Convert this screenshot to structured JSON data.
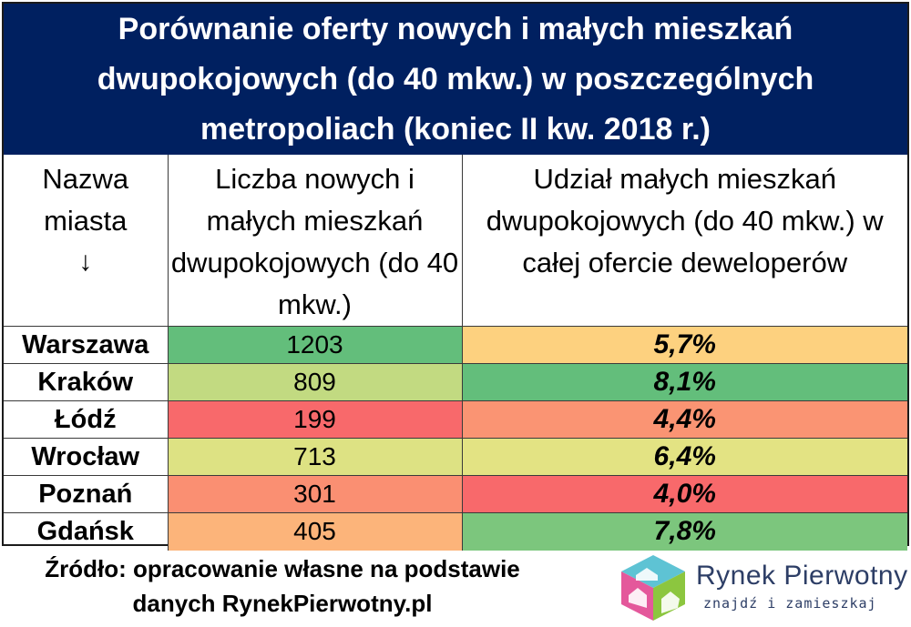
{
  "chart_data": {
    "type": "table",
    "title": "Porównanie oferty nowych i małych mieszkań dwupokojowych (do 40 mkw.) w poszczególnych metropoliach (koniec II kw. 2018 r.)",
    "columns": [
      {
        "label": "Nazwa miasta",
        "arrow": "↓"
      },
      {
        "label": "Liczba nowych i małych mieszkań dwupokojowych (do 40 mkw.)"
      },
      {
        "label": "Udział małych mieszkań dwupokojowych (do 40 mkw.) w całej ofercie deweloperów"
      }
    ],
    "rows": [
      {
        "city": "Warszawa",
        "count": "1203",
        "share": "5,7%",
        "count_color": "#63be7b",
        "share_color": "#fdd17f"
      },
      {
        "city": "Kraków",
        "count": "809",
        "share": "8,1%",
        "count_color": "#c2da81",
        "share_color": "#63be7b"
      },
      {
        "city": "Łódź",
        "count": "199",
        "share": "4,4%",
        "count_color": "#f8696b",
        "share_color": "#fa9473"
      },
      {
        "city": "Wrocław",
        "count": "713",
        "share": "6,4%",
        "count_color": "#dde283",
        "share_color": "#e3e383"
      },
      {
        "city": "Poznań",
        "count": "301",
        "share": "4,0%",
        "count_color": "#fa8f72",
        "share_color": "#f8696b"
      },
      {
        "city": "Gdańsk",
        "count": "405",
        "share": "7,8%",
        "count_color": "#fcb47a",
        "share_color": "#7cc67d"
      }
    ],
    "source": "Źródło: opracowanie własne na podstawie danych RynekPierwotny.pl"
  },
  "logo": {
    "brand": "Rynek Pierwotny",
    "tagline": "znajdź i zamieszkaj"
  },
  "colors": {
    "header_bg": "#002060",
    "header_text": "#ffffff",
    "brand_text": "#2d3e66"
  }
}
